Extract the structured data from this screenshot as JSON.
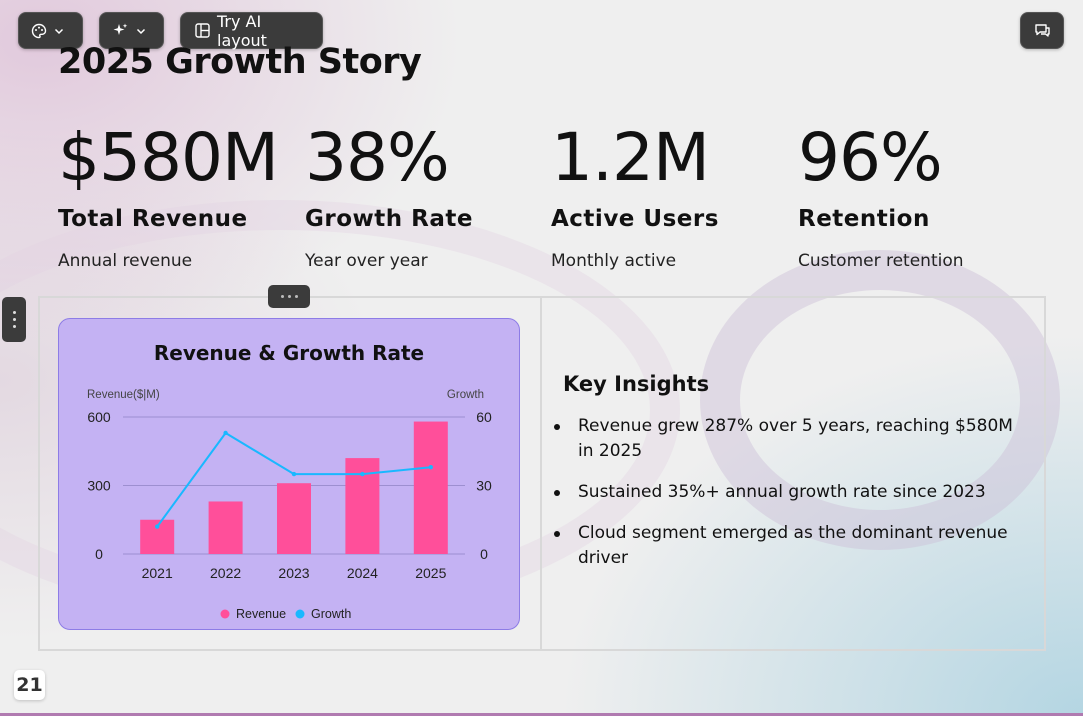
{
  "toolbar": {
    "palette_icon": "palette-icon",
    "magic_icon": "sparkles-icon",
    "ai_layout_label": "Try AI layout",
    "chat_icon": "chat-icon"
  },
  "slide": {
    "title": "2025 Growth Story",
    "stats": [
      {
        "value": "$580M",
        "label": "Total Revenue",
        "sub": "Annual revenue"
      },
      {
        "value": "38%",
        "label": "Growth Rate",
        "sub": "Year over year"
      },
      {
        "value": "1.2M",
        "label": "Active Users",
        "sub": "Monthly active"
      },
      {
        "value": "96%",
        "label": "Retention",
        "sub": "Customer retention"
      }
    ],
    "insights": {
      "title": "Key Insights",
      "items": [
        "Revenue grew 287% over 5 years, reaching $580M in 2025",
        "Sustained 35%+ annual growth rate since 2023",
        "Cloud segment emerged as the dominant revenue driver"
      ]
    },
    "page_number": "21"
  },
  "colors": {
    "revenue": "#ff4f9a",
    "growth": "#19b8ff",
    "card_bg": "#c4b2f3"
  },
  "chart_data": {
    "type": "bar",
    "title": "Revenue & Growth Rate",
    "categories": [
      "2021",
      "2022",
      "2023",
      "2024",
      "2025"
    ],
    "ylabel": "Revenue($|M)",
    "y2label": "Growth",
    "ylim": [
      0,
      600
    ],
    "y2lim": [
      0,
      60
    ],
    "yticks": [
      "0",
      "300",
      "600"
    ],
    "y2ticks": [
      "0",
      "30",
      "60"
    ],
    "series": [
      {
        "name": "Revenue",
        "type": "bar",
        "axis": "left",
        "values": [
          150,
          230,
          310,
          420,
          580
        ]
      },
      {
        "name": "Growth",
        "type": "line",
        "axis": "right",
        "values": [
          12,
          53,
          35,
          35,
          38
        ]
      }
    ],
    "legend": "bottom",
    "grid": true
  }
}
